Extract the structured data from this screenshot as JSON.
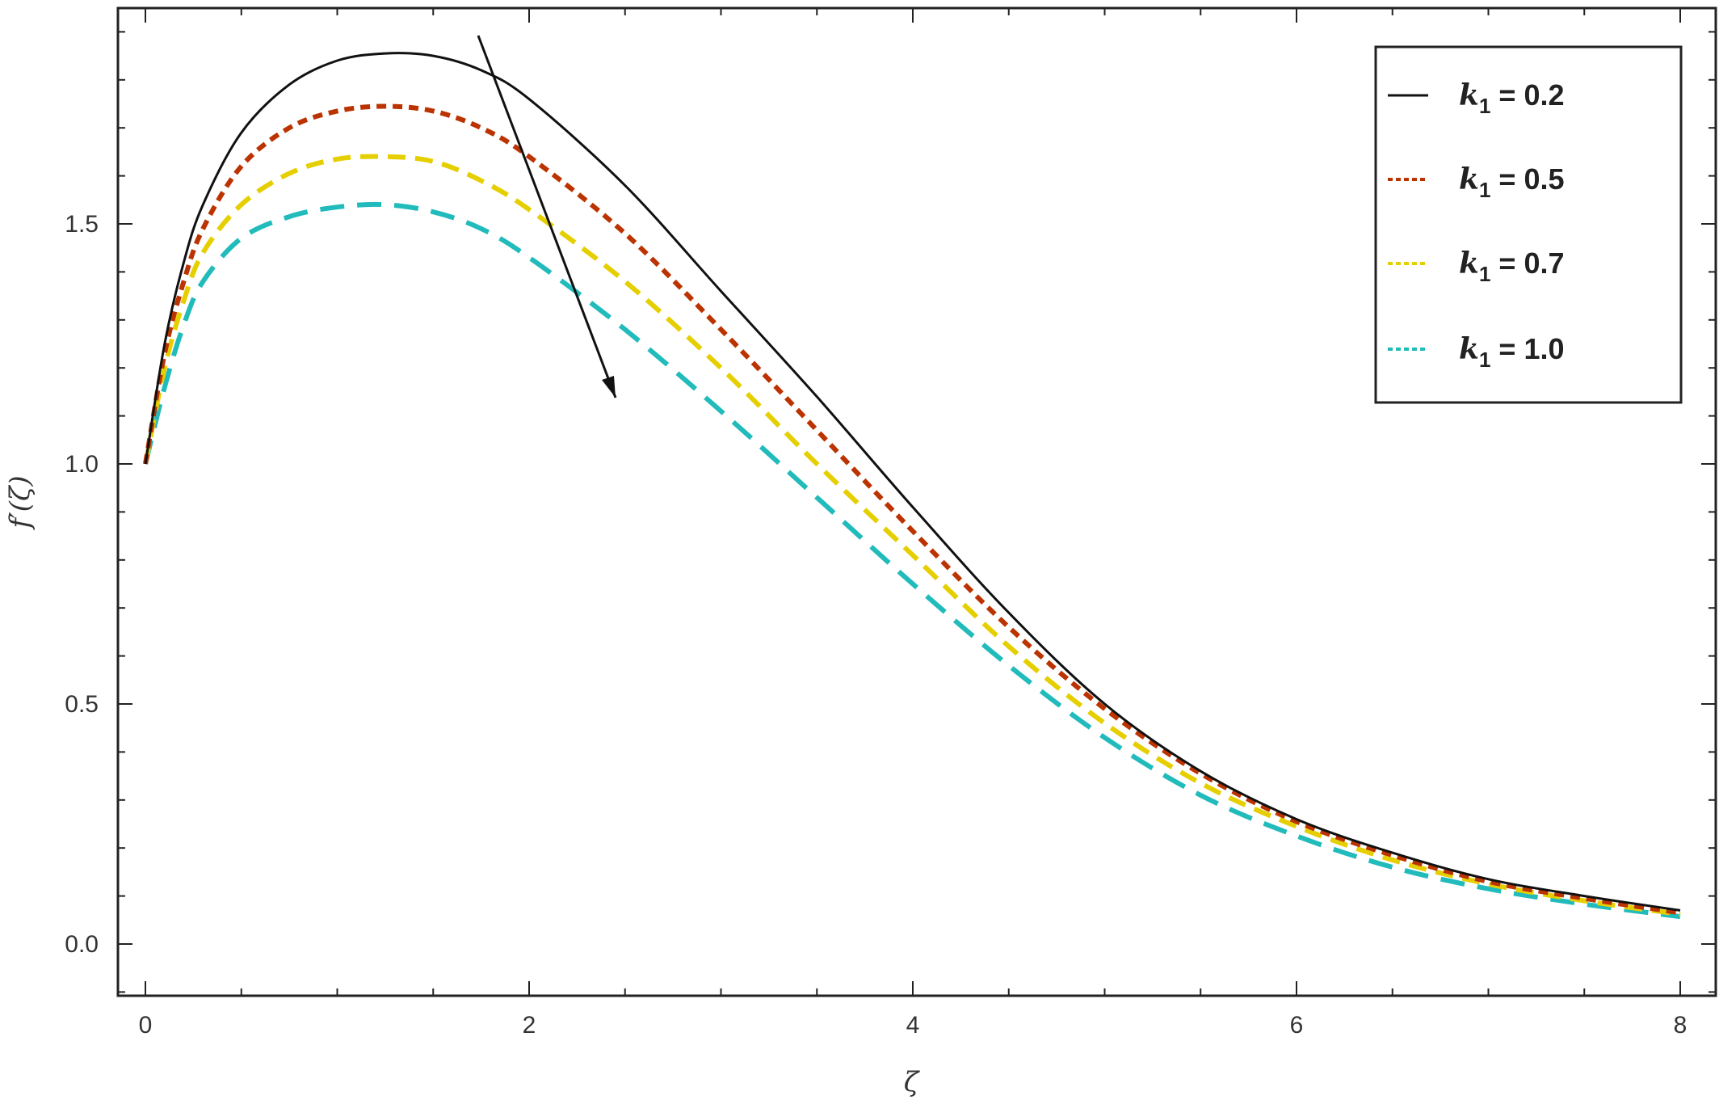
{
  "chart_data": {
    "type": "line",
    "title": "",
    "xlabel": "ζ",
    "ylabel": "f′(ζ)",
    "xlim": [
      -0.15,
      8.2
    ],
    "ylim": [
      -0.1,
      1.92
    ],
    "x_ticks": [
      0,
      2,
      4,
      6,
      8
    ],
    "x_tick_labels": [
      "0",
      "2",
      "4",
      "6",
      "8"
    ],
    "y_ticks": [
      0.0,
      0.5,
      1.0,
      1.5
    ],
    "y_tick_labels": [
      "0.0",
      "0.5",
      "1.0",
      "1.5"
    ],
    "x_minor_step": 0.5,
    "y_minor_step": 0.1,
    "grid": false,
    "legend_position": "top-right",
    "x": [
      0,
      0.1,
      0.2,
      0.3,
      0.5,
      0.75,
      1.0,
      1.25,
      1.5,
      1.75,
      2.0,
      2.5,
      3.0,
      3.5,
      4.0,
      4.5,
      5.0,
      5.5,
      6.0,
      6.5,
      7.0,
      7.5,
      8.0
    ],
    "series": [
      {
        "name": "k1 = 0.2",
        "legend_var": "k",
        "legend_sub": "1",
        "legend_value": "= 0.2",
        "color": "#111111",
        "dash": "none",
        "width": 3,
        "values": [
          1.0,
          1.25,
          1.42,
          1.54,
          1.69,
          1.79,
          1.84,
          1.855,
          1.85,
          1.82,
          1.76,
          1.58,
          1.36,
          1.14,
          0.91,
          0.69,
          0.5,
          0.36,
          0.26,
          0.19,
          0.135,
          0.1,
          0.07
        ]
      },
      {
        "name": "k1 = 0.5",
        "legend_var": "k",
        "legend_sub": "1",
        "legend_value": "= 0.5",
        "color": "#bb3300",
        "dash": "12 8",
        "width": 6,
        "values": [
          1.0,
          1.23,
          1.38,
          1.49,
          1.62,
          1.7,
          1.735,
          1.745,
          1.735,
          1.7,
          1.64,
          1.48,
          1.28,
          1.07,
          0.86,
          0.66,
          0.49,
          0.355,
          0.255,
          0.185,
          0.13,
          0.095,
          0.065
        ]
      },
      {
        "name": "k1 = 0.7",
        "legend_var": "k",
        "legend_sub": "1",
        "legend_value": "= 0.7",
        "color": "#e6cf00",
        "dash": "22 12",
        "width": 6,
        "values": [
          1.0,
          1.2,
          1.34,
          1.44,
          1.54,
          1.605,
          1.635,
          1.64,
          1.63,
          1.59,
          1.53,
          1.38,
          1.2,
          1.0,
          0.81,
          0.62,
          0.46,
          0.335,
          0.245,
          0.175,
          0.125,
          0.09,
          0.062
        ]
      },
      {
        "name": "k1 = 1.0",
        "legend_var": "k",
        "legend_sub": "1",
        "legend_value": "= 1.0",
        "color": "#22bbbb",
        "dash": "30 16",
        "width": 6,
        "values": [
          1.0,
          1.16,
          1.29,
          1.38,
          1.47,
          1.515,
          1.535,
          1.54,
          1.525,
          1.49,
          1.43,
          1.28,
          1.11,
          0.93,
          0.75,
          0.58,
          0.43,
          0.31,
          0.225,
          0.16,
          0.115,
          0.083,
          0.057
        ]
      }
    ]
  }
}
